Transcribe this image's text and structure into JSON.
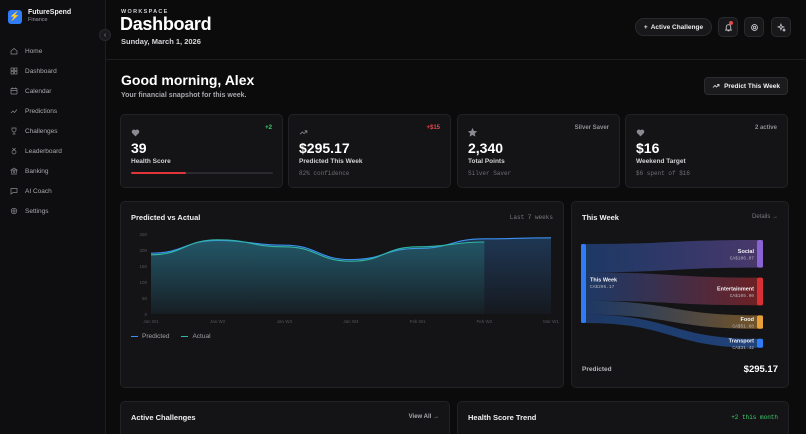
{
  "brand": {
    "name": "FutureSpend",
    "sub": "Finance"
  },
  "nav": [
    {
      "label": "Home",
      "icon": "home-icon"
    },
    {
      "label": "Dashboard",
      "icon": "dashboard-icon"
    },
    {
      "label": "Calendar",
      "icon": "calendar-icon"
    },
    {
      "label": "Predictions",
      "icon": "trend-icon"
    },
    {
      "label": "Challenges",
      "icon": "trophy-icon"
    },
    {
      "label": "Leaderboard",
      "icon": "medal-icon"
    },
    {
      "label": "Banking",
      "icon": "bank-icon"
    },
    {
      "label": "AI Coach",
      "icon": "chat-icon"
    },
    {
      "label": "Settings",
      "icon": "gear-icon"
    }
  ],
  "header": {
    "eyebrow": "WORKSPACE",
    "title": "Dashboard",
    "date": "Sunday, March 1, 2026",
    "challenge_button": "Active Challenge",
    "challenge_prefix": "+"
  },
  "main": {
    "greeting": "Good morning, Alex",
    "subtitle": "Your financial snapshot for this week.",
    "predict_button": "Predict This Week"
  },
  "stats": [
    {
      "icon": "heart-icon",
      "badge": "+2",
      "badge_color": "#3ecf6e",
      "value": "39",
      "label": "Health Score",
      "progress": 0.39
    },
    {
      "icon": "trend-up-icon",
      "badge": "+$15",
      "badge_color": "#e5484d",
      "value": "$295.17",
      "label": "Predicted This Week",
      "sub": "82% confidence"
    },
    {
      "icon": "star-icon",
      "badge": "Silver Saver",
      "badge_color": "#8f8f95",
      "value": "2,340",
      "label": "Total Points",
      "sub": "Silver Saver"
    },
    {
      "icon": "heart-icon",
      "badge": "2 active",
      "badge_color": "#8f8f95",
      "value": "$16",
      "label": "Weekend Target",
      "sub": "$6 spent of $16"
    }
  ],
  "colors": {
    "predicted": "#3b8ff0",
    "actual": "#2fb8a6",
    "progress": "#e0353b"
  },
  "chart_panel": {
    "title": "Predicted vs Actual",
    "range": "Last 7 weeks",
    "legend": [
      "Predicted",
      "Actual"
    ]
  },
  "chart_data": {
    "type": "area",
    "title": "Predicted vs Actual",
    "categories": [
      "Jan W1",
      "Jan W2",
      "Jan W3",
      "Jan W4",
      "Feb W1",
      "Feb W2",
      "Mar W1"
    ],
    "ylim": [
      0,
      250
    ],
    "yticks": [
      0,
      50,
      100,
      150,
      200,
      250
    ],
    "series": [
      {
        "name": "Predicted",
        "values": [
          190,
          230,
          215,
          170,
          205,
          235,
          238
        ]
      },
      {
        "name": "Actual",
        "values": [
          185,
          232,
          210,
          165,
          210,
          225,
          null
        ]
      }
    ],
    "grid": false
  },
  "week_panel": {
    "title": "This Week",
    "details": "Details →",
    "source_label": "This Week",
    "source_amount": "CA$295.17",
    "footer_label": "Predicted",
    "footer_value": "$295.17",
    "targets": [
      {
        "label": "Social",
        "amount": "CA$106.07",
        "color": "#8a63d2",
        "value": 106.07
      },
      {
        "label": "Entertainment",
        "amount": "CA$105.90",
        "color": "#d93036",
        "value": 105.9
      },
      {
        "label": "Food",
        "amount": "CA$51.68",
        "color": "#e8a13a",
        "value": 51.68
      },
      {
        "label": "Transport",
        "amount": "CA$31.42",
        "color": "#2f7cf6",
        "value": 31.42
      }
    ]
  },
  "bottom": {
    "challenges_title": "Active Challenges",
    "view_all": "View All →",
    "health_title": "Health Score Trend",
    "health_change": "+2 this month"
  }
}
